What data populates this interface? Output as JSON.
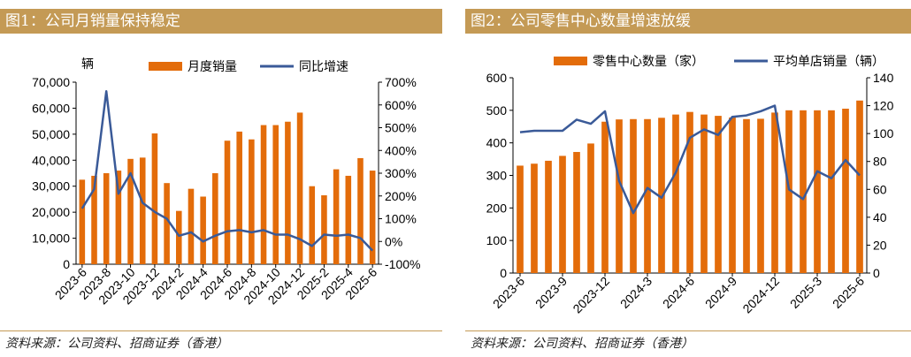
{
  "chart_data": [
    {
      "type": "bar",
      "title": "图1：公司月销量保持稳定",
      "unit_label": "辆",
      "source": "资料来源：公司资料、招商证券（香港）",
      "categories": [
        "2023-6",
        "2023-7",
        "2023-8",
        "2023-9",
        "2023-10",
        "2023-11",
        "2023-12",
        "2024-1",
        "2024-2",
        "2024-3",
        "2024-4",
        "2024-5",
        "2024-6",
        "2024-7",
        "2024-8",
        "2024-9",
        "2024-10",
        "2024-11",
        "2024-12",
        "2025-1",
        "2025-2",
        "2025-3",
        "2025-4",
        "2025-5",
        "2025-6"
      ],
      "x_tick_labels": [
        "2023-6",
        "2023-8",
        "2023-10",
        "2023-12",
        "2024-2",
        "2024-4",
        "2024-6",
        "2024-8",
        "2024-10",
        "2024-12",
        "2025-2",
        "2025-4",
        "2025-6"
      ],
      "series": [
        {
          "name": "月度销量",
          "type": "bar",
          "axis": "left",
          "color": "#e36c0a",
          "values": [
            32500,
            34000,
            35000,
            36000,
            40500,
            41000,
            50300,
            31200,
            20500,
            29000,
            26000,
            35000,
            47500,
            51000,
            48000,
            53500,
            53500,
            54800,
            58300,
            30000,
            26500,
            36500,
            34000,
            40800,
            36000
          ]
        },
        {
          "name": "同比增速",
          "type": "line",
          "axis": "right",
          "color": "#3a5a98",
          "values": [
            145,
            230,
            660,
            210,
            300,
            170,
            130,
            100,
            25,
            40,
            0,
            25,
            45,
            50,
            40,
            50,
            30,
            30,
            10,
            -20,
            30,
            25,
            30,
            15,
            -40
          ]
        }
      ],
      "y_left": {
        "ylim": [
          0,
          70000
        ],
        "ticks": [
          "0",
          "10,000",
          "20,000",
          "30,000",
          "40,000",
          "50,000",
          "60,000",
          "70,000"
        ]
      },
      "y_right": {
        "ylim": [
          -100,
          700
        ],
        "ticks": [
          "-100%",
          "0%",
          "100%",
          "200%",
          "300%",
          "400%",
          "500%",
          "600%",
          "700%"
        ]
      },
      "legend_placement": "top"
    },
    {
      "type": "bar",
      "title": "图2：公司零售中心数量增速放缓",
      "source": "资料来源：公司资料、招商证券（香港）",
      "categories": [
        "2023-6",
        "2023-7",
        "2023-8",
        "2023-9",
        "2023-10",
        "2023-11",
        "2023-12",
        "2024-1",
        "2024-2",
        "2024-3",
        "2024-4",
        "2024-5",
        "2024-6",
        "2024-7",
        "2024-8",
        "2024-9",
        "2024-10",
        "2024-11",
        "2024-12",
        "2025-1",
        "2025-2",
        "2025-3",
        "2025-4",
        "2025-5",
        "2025-6"
      ],
      "x_tick_labels": [
        "2023-6",
        "2023-9",
        "2023-12",
        "2024-3",
        "2024-6",
        "2024-9",
        "2024-12",
        "2025-3",
        "2025-6"
      ],
      "series": [
        {
          "name": "零售中心数量（家）",
          "type": "bar",
          "axis": "left",
          "color": "#e36c0a",
          "values": [
            330,
            336,
            345,
            360,
            372,
            398,
            465,
            472,
            473,
            473,
            477,
            487,
            495,
            487,
            483,
            478,
            473,
            474,
            493,
            500,
            500,
            500,
            500,
            505,
            530
          ]
        },
        {
          "name": "平均单店销量（辆）",
          "type": "line",
          "axis": "right",
          "color": "#3a5a98",
          "values": [
            101,
            102,
            102,
            102,
            110,
            107,
            116,
            66,
            43,
            61,
            54,
            72,
            97,
            103,
            99,
            112,
            113,
            116,
            120,
            60,
            53,
            73,
            68,
            81,
            70
          ]
        }
      ],
      "y_left": {
        "ylim": [
          0,
          600
        ],
        "ticks": [
          "0",
          "100",
          "200",
          "300",
          "400",
          "500",
          "600"
        ]
      },
      "y_right": {
        "ylim": [
          0,
          140
        ],
        "ticks": [
          "0",
          "20",
          "40",
          "60",
          "80",
          "100",
          "120",
          "140"
        ]
      },
      "legend_placement": "top"
    }
  ]
}
